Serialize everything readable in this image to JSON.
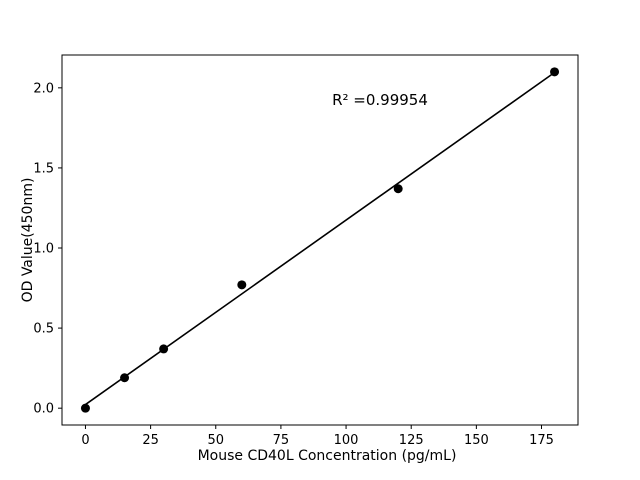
{
  "chart_data": {
    "type": "scatter",
    "title": "",
    "xlabel": "Mouse CD40L Concentration (pg/mL)",
    "ylabel": "OD Value(450nm)",
    "annotation": "R² =0.99954",
    "x": [
      0,
      15,
      30,
      60,
      120,
      180
    ],
    "y": [
      0.0,
      0.19,
      0.37,
      0.77,
      1.37,
      2.1
    ],
    "fit_line": true,
    "xlim": [
      -9,
      189
    ],
    "ylim": [
      -0.105,
      2.205
    ],
    "xtick_values": [
      0,
      25,
      50,
      75,
      100,
      125,
      150,
      175
    ],
    "xtick_labels": [
      "0",
      "25",
      "50",
      "75",
      "100",
      "125",
      "150",
      "175"
    ],
    "ytick_values": [
      0,
      0.5,
      1,
      1.5,
      2
    ],
    "ytick_labels": [
      "0.0",
      "0.5",
      "1.0",
      "1.5",
      "2.0"
    ],
    "grid": false,
    "legend_position": "none",
    "point_color": "#000000",
    "line_color": "#000000",
    "background": "#ffffff"
  }
}
